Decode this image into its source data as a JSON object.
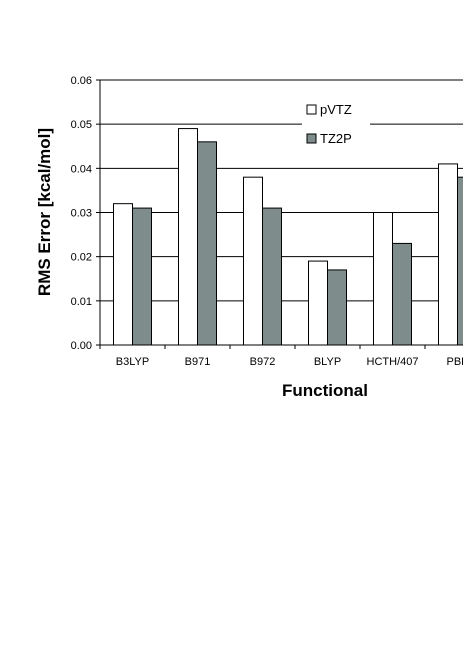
{
  "chart_data": {
    "type": "bar",
    "title": "",
    "xlabel": "Functional",
    "ylabel": "RMS Error [kcal/mol]",
    "ylim": [
      0,
      0.06
    ],
    "yticks": [
      "0.00",
      "0.01",
      "0.02",
      "0.03",
      "0.04",
      "0.05",
      "0.06"
    ],
    "categories": [
      "B3LYP",
      "B971",
      "B972",
      "BLYP",
      "HCTH/407",
      "PBE"
    ],
    "grid": true,
    "legend_position": "top-center",
    "series": [
      {
        "name": "pVTZ",
        "color": "#ffffff",
        "values": [
          0.032,
          0.049,
          0.038,
          0.019,
          0.03,
          0.041
        ]
      },
      {
        "name": "TZ2P",
        "color": "#7f8c8c",
        "values": [
          0.031,
          0.046,
          0.031,
          0.017,
          0.023,
          0.038
        ]
      }
    ]
  }
}
